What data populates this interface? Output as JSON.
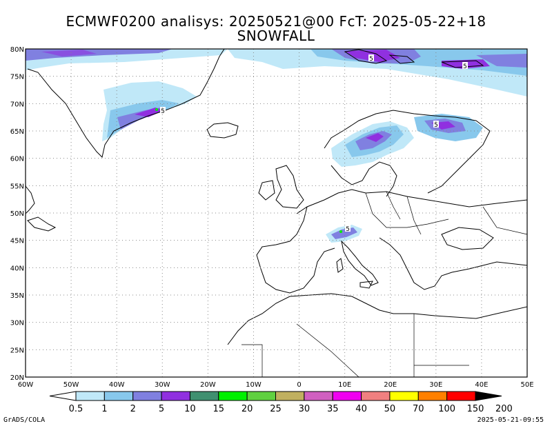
{
  "title": {
    "line1": "ECMWF0200 analisys: 20250521@00 FcT: 2025-05-22+18",
    "line2": "SNOWFALL"
  },
  "map": {
    "lat_range": [
      20,
      80
    ],
    "lon_range": [
      -60,
      50
    ],
    "lat_ticks": [
      "80N",
      "75N",
      "70N",
      "65N",
      "60N",
      "55N",
      "50N",
      "45N",
      "40N",
      "35N",
      "30N",
      "25N",
      "20N"
    ],
    "lon_ticks": [
      "60W",
      "50W",
      "40W",
      "30W",
      "20W",
      "10W",
      "0",
      "10E",
      "20E",
      "30E",
      "40E",
      "50E"
    ],
    "contour_labels": [
      "5",
      "5",
      "5",
      "5",
      "5"
    ],
    "grid": "dotted"
  },
  "legend": {
    "labels": [
      "0.5",
      "1",
      "2",
      "5",
      "10",
      "15",
      "20",
      "25",
      "30",
      "35",
      "40",
      "50",
      "70",
      "100",
      "150",
      "200"
    ],
    "colors": [
      "#c0e8f8",
      "#88c8ec",
      "#8080e0",
      "#9030e0",
      "#409070",
      "#00f000",
      "#60d040",
      "#c0b060",
      "#d060c0",
      "#f000f0",
      "#f08080",
      "#ffff00",
      "#ff8000",
      "#ff0000",
      "#a00000",
      "#000000"
    ]
  },
  "footer": {
    "left": "GrADS/COLA",
    "right": "2025-05-21-09:55"
  }
}
